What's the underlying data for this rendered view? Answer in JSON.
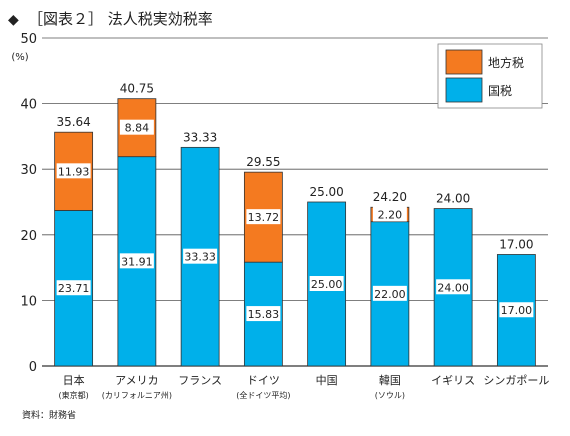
{
  "chart_data": {
    "type": "bar",
    "stacked": true,
    "title_marker": "◆",
    "title": "［図表２］ 法人税実効税率",
    "unit_label": "(%)",
    "ylim": [
      0,
      50
    ],
    "yticks": [
      "0",
      "10",
      "20",
      "30",
      "40",
      "50"
    ],
    "grid": true,
    "legend_position": "top-right",
    "categories": [
      {
        "label": "日本",
        "sublabel": "(東京都)"
      },
      {
        "label": "アメリカ",
        "sublabel": "(カリフォルニア州)"
      },
      {
        "label": "フランス",
        "sublabel": ""
      },
      {
        "label": "ドイツ",
        "sublabel": "(全ドイツ平均)"
      },
      {
        "label": "中国",
        "sublabel": ""
      },
      {
        "label": "韓国",
        "sublabel": "(ソウル)"
      },
      {
        "label": "イギリス",
        "sublabel": ""
      },
      {
        "label": "シンガポール",
        "sublabel": ""
      }
    ],
    "series": [
      {
        "name": "国税",
        "color": "#00b0ea",
        "values": [
          23.71,
          31.91,
          33.33,
          15.83,
          25.0,
          22.0,
          24.0,
          17.0
        ],
        "labels": [
          "23.71",
          "31.91",
          "33.33",
          "15.83",
          "25.00",
          "22.00",
          "24.00",
          "17.00"
        ]
      },
      {
        "name": "地方税",
        "color": "#f47a20",
        "values": [
          11.93,
          8.84,
          0,
          13.72,
          0,
          2.2,
          0,
          0
        ],
        "labels": [
          "11.93",
          "8.84",
          "",
          "13.72",
          "",
          "2.20",
          "",
          ""
        ]
      }
    ],
    "totals": [
      "35.64",
      "40.75",
      "33.33",
      "29.55",
      "25.00",
      "24.20",
      "24.00",
      "17.00"
    ],
    "legend": [
      "地方税",
      "国税"
    ],
    "source": "資料：財務省"
  }
}
